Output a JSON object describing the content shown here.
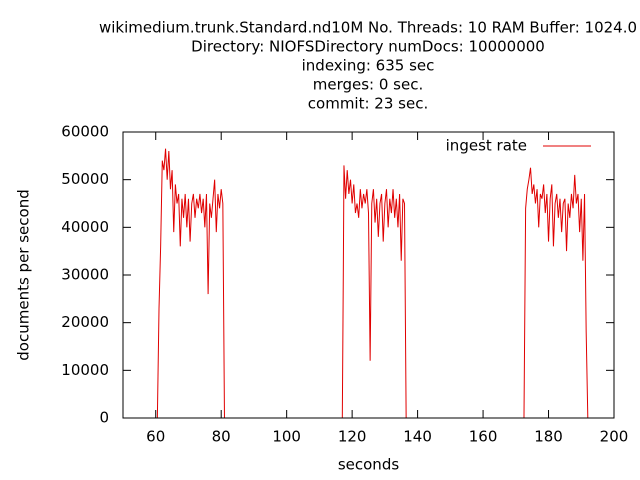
{
  "chart_data": {
    "type": "line",
    "title": [
      "wikimedium.trunk.Standard.nd10M No. Threads: 10 RAM Buffer: 1024.0",
      "Directory: NIOFSDirectory numDocs: 10000000",
      "indexing: 635 sec",
      "merges: 0 sec.",
      "commit: 23 sec."
    ],
    "x_label": "seconds",
    "y_label": "documents per second",
    "xlim": [
      50,
      200
    ],
    "xticks": [
      60,
      80,
      100,
      120,
      140,
      160,
      180,
      200
    ],
    "ylim": [
      0,
      60000
    ],
    "yticks": [
      0,
      10000,
      20000,
      30000,
      40000,
      50000,
      60000
    ],
    "legend_position": "top-right",
    "series": [
      {
        "name": "ingest rate",
        "color": "#e00000",
        "x": [
          60.5,
          61,
          61.5,
          62,
          62.5,
          63,
          63.5,
          64,
          64.5,
          65,
          65.5,
          66,
          66.5,
          67,
          67.5,
          68,
          68.5,
          69,
          69.5,
          70,
          70.5,
          71,
          71.5,
          72,
          72.5,
          73,
          73.5,
          74,
          74.5,
          75,
          75.5,
          76,
          76.5,
          77,
          77.5,
          78,
          78.5,
          79,
          79.5,
          80,
          80.5,
          81,
          117,
          117.3,
          117.5,
          118,
          118.5,
          119,
          119.5,
          120,
          120.5,
          121,
          121.5,
          122,
          122.5,
          123,
          123.5,
          124,
          124.5,
          125,
          125.5,
          126,
          126.5,
          127,
          127.5,
          128,
          128.5,
          129,
          129.5,
          130,
          130.5,
          131,
          131.5,
          132,
          132.5,
          133,
          133.5,
          134,
          134.5,
          135,
          135.5,
          136,
          136.5,
          172.5,
          173,
          173.5,
          174,
          174.5,
          175,
          175.5,
          176,
          176.5,
          177,
          177.5,
          178,
          178.5,
          179,
          179.5,
          180,
          180.5,
          181,
          181.5,
          182,
          182.5,
          183,
          183.5,
          184,
          184.5,
          185,
          185.5,
          186,
          186.5,
          187,
          187.5,
          188,
          188.5,
          189,
          189.5,
          190,
          190.5,
          191,
          191.5,
          192
        ],
        "values": [
          0,
          23000,
          36000,
          54000,
          52000,
          56500,
          50000,
          56000,
          48000,
          52000,
          39000,
          49000,
          45000,
          47000,
          36000,
          46000,
          42000,
          47000,
          40000,
          46000,
          37000,
          45000,
          47000,
          42000,
          46000,
          44000,
          47000,
          43000,
          46000,
          40000,
          47000,
          26000,
          45000,
          42000,
          46000,
          50000,
          39000,
          47000,
          44000,
          48000,
          45000,
          0,
          0,
          30000,
          53000,
          46000,
          52000,
          47000,
          50000,
          45000,
          49000,
          43000,
          45000,
          42000,
          48000,
          44000,
          47000,
          45000,
          48000,
          43000,
          12000,
          45000,
          48000,
          41000,
          46000,
          38000,
          45000,
          47000,
          37000,
          45000,
          48000,
          40000,
          46000,
          43000,
          48000,
          42000,
          46000,
          40000,
          47000,
          33000,
          46000,
          45000,
          0,
          0,
          44000,
          48000,
          50000,
          52500,
          47000,
          49000,
          45000,
          48000,
          40000,
          47000,
          46000,
          49000,
          43000,
          47000,
          37000,
          46000,
          49000,
          36000,
          45000,
          47000,
          42000,
          46000,
          39000,
          45000,
          46000,
          35000,
          45000,
          42000,
          47000,
          44000,
          51000,
          45000,
          47000,
          39000,
          46000,
          33000,
          47000,
          18000,
          0
        ]
      }
    ]
  }
}
